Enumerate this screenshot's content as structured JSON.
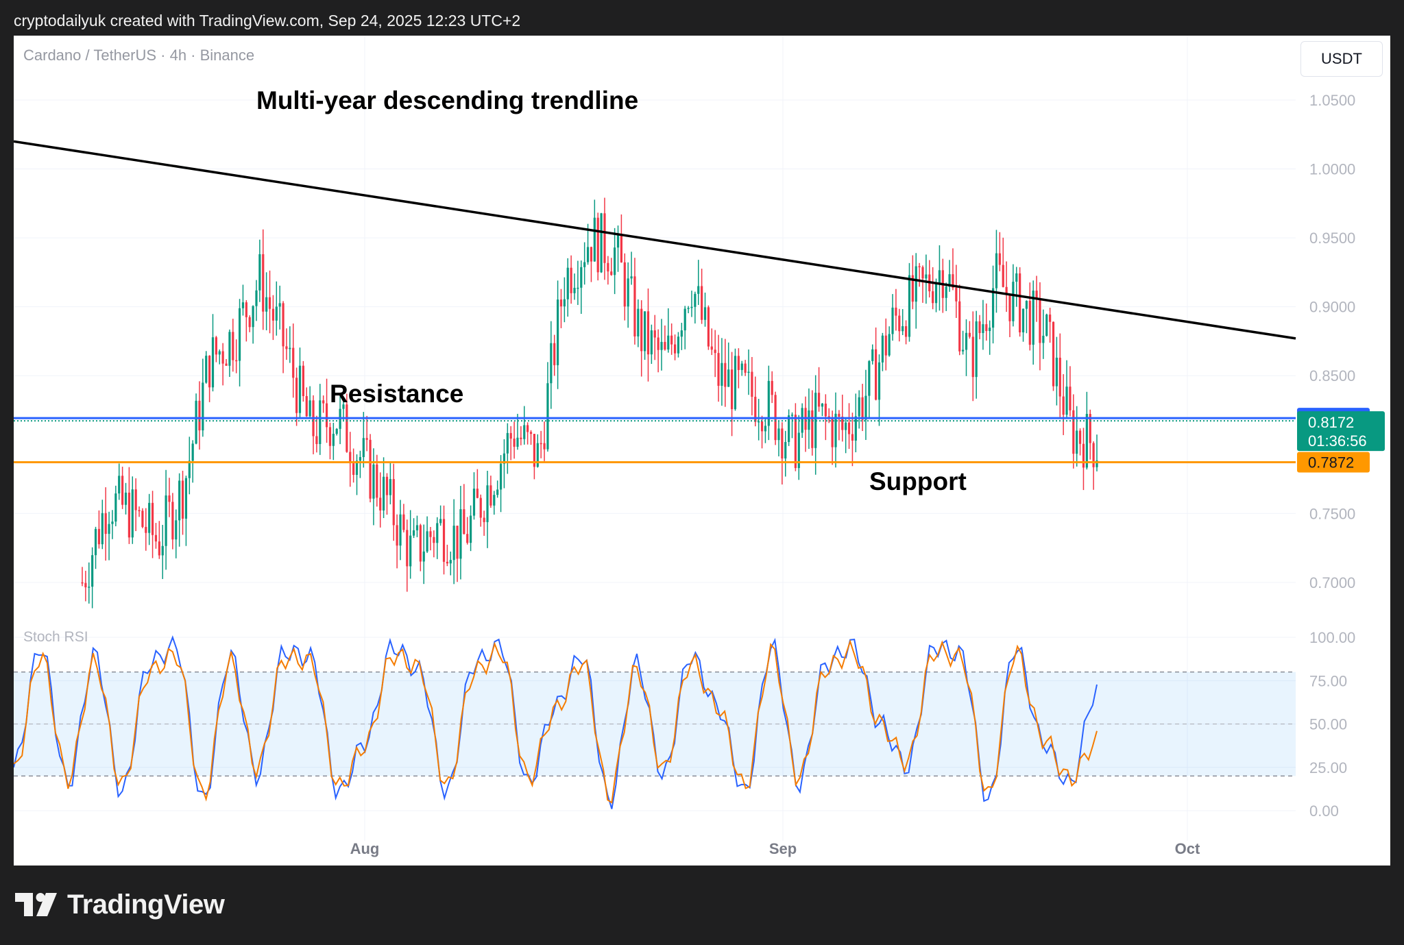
{
  "header": {
    "attribution": "cryptodailyuk created with TradingView.com, Sep 24, 2025 12:23 UTC+2"
  },
  "footer": {
    "brand": "TradingView"
  },
  "toolbar": {
    "currency": "USDT"
  },
  "chart_data": [
    {
      "type": "candlestick",
      "symbol": "Cardano / TetherUS · 4h · Binance",
      "y_axis": {
        "ticks": [
          "1.0500",
          "1.0000",
          "0.9500",
          "0.9000",
          "0.8500",
          "0.7500",
          "0.7000"
        ],
        "range": [
          0.686,
          1.05
        ]
      },
      "x_axis": {
        "labels": [
          "Aug",
          "Sep",
          "Oct"
        ]
      },
      "price_series_approx": {
        "x": [
          "Jul 7",
          "Jul 9",
          "Jul 11",
          "Jul 13",
          "Jul 15",
          "Jul 17",
          "Jul 19",
          "Jul 21",
          "Jul 23",
          "Jul 25",
          "Jul 27",
          "Jul 29",
          "Jul 31",
          "Aug 2",
          "Aug 4",
          "Aug 6",
          "Aug 8",
          "Aug 10",
          "Aug 12",
          "Aug 14",
          "Aug 16",
          "Aug 18",
          "Aug 20",
          "Aug 22",
          "Aug 24",
          "Aug 26",
          "Aug 28",
          "Aug 30",
          "Sep 1",
          "Sep 3",
          "Sep 5",
          "Sep 7",
          "Sep 9",
          "Sep 11",
          "Sep 13",
          "Sep 15",
          "Sep 17",
          "Sep 19",
          "Sep 21",
          "Sep 23",
          "Sep 24"
        ],
        "close": [
          0.7,
          0.76,
          0.75,
          0.73,
          0.77,
          0.86,
          0.88,
          0.92,
          0.87,
          0.81,
          0.82,
          0.79,
          0.76,
          0.72,
          0.74,
          0.73,
          0.77,
          0.81,
          0.79,
          0.92,
          0.95,
          0.94,
          0.88,
          0.86,
          0.92,
          0.85,
          0.84,
          0.83,
          0.8,
          0.82,
          0.81,
          0.84,
          0.89,
          0.91,
          0.93,
          0.86,
          0.92,
          0.9,
          0.88,
          0.81,
          0.8
        ]
      },
      "levels": [
        {
          "name": "Resistance",
          "value": 0.8192,
          "color": "#2962ff"
        },
        {
          "name": "Support",
          "value": 0.7872,
          "color": "#ff9800"
        }
      ],
      "trendline": {
        "label": "Multi-year descending trendline",
        "start": [
          "Jul 3",
          1.02
        ],
        "end": [
          "Oct 13",
          0.877
        ]
      },
      "last_price": {
        "value": "0.8172",
        "countdown": "01:36:56",
        "color": "#089981"
      },
      "annotations": [
        "Multi-year descending trendline",
        "Resistance",
        "Support"
      ],
      "colors": {
        "up": "#089981",
        "down": "#f23645"
      }
    },
    {
      "type": "line",
      "indicator": "Stoch RSI",
      "y_axis": {
        "ticks": [
          "100.00",
          "75.00",
          "50.00",
          "25.00",
          "0.00"
        ],
        "range": [
          0,
          100
        ]
      },
      "bands": {
        "upper": 80,
        "middle": 50,
        "lower": 20
      },
      "series": [
        {
          "color": "#2962ff",
          "values": [
            25,
            95,
            15,
            90,
            10,
            85,
            95,
            5,
            90,
            20,
            92,
            88,
            10,
            40,
            95,
            80,
            10,
            85,
            95,
            15,
            60,
            90,
            5,
            85,
            20,
            90,
            60,
            10,
            95,
            15,
            85,
            95,
            50,
            25,
            95,
            90,
            5,
            95,
            40,
            15,
            70
          ]
        },
        {
          "color": "#f57c00",
          "values": [
            22,
            90,
            18,
            86,
            14,
            80,
            90,
            8,
            86,
            24,
            88,
            86,
            13,
            38,
            90,
            82,
            13,
            80,
            92,
            18,
            58,
            86,
            8,
            82,
            23,
            86,
            60,
            13,
            92,
            18,
            82,
            92,
            50,
            28,
            92,
            88,
            8,
            92,
            42,
            18,
            40
          ]
        }
      ]
    }
  ]
}
